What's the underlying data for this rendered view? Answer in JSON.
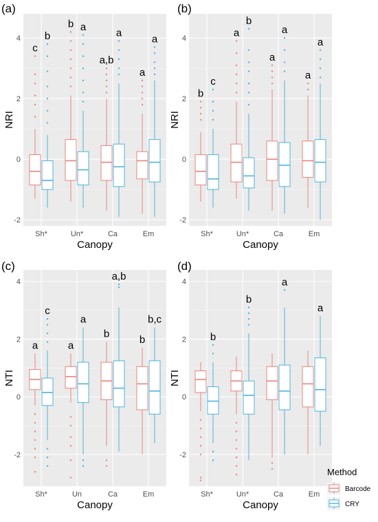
{
  "colors": {
    "panel_bg": "#EBEBEB",
    "grid_major": "#FFFFFF",
    "grid_minor": "#F5F5F5",
    "barcode": "#E8847C",
    "cry": "#4FB3D9",
    "text": "#000000",
    "tick_text": "#4D4D4D"
  },
  "legend": {
    "title": "Method",
    "items": [
      {
        "label": "Barcode",
        "color": "#E8847C"
      },
      {
        "label": "CRY",
        "color": "#4FB3D9"
      }
    ]
  },
  "chart_data": [
    {
      "panel": "(a)",
      "type": "boxplot",
      "xlabel": "Canopy",
      "ylabel": "NRI",
      "ylim": [
        -2.2,
        4.8
      ],
      "yticks": [
        -2,
        0,
        2,
        4
      ],
      "categories": [
        "Sh*",
        "Un*",
        "Ca",
        "Em"
      ],
      "series": [
        {
          "name": "Barcode",
          "boxes": [
            {
              "min": -1.3,
              "q1": -0.85,
              "median": -0.4,
              "q3": 0.15,
              "max": 1.0,
              "outliers": [
                1.4,
                1.8,
                2.1,
                2.5,
                2.8,
                3.4
              ],
              "letter": "c"
            },
            {
              "min": -1.4,
              "q1": -0.7,
              "median": -0.05,
              "q3": 0.65,
              "max": 2.1,
              "outliers": [
                2.4,
                2.7,
                3.0,
                3.3,
                3.6,
                3.9,
                4.2
              ],
              "letter": "b"
            },
            {
              "min": -1.7,
              "q1": -0.7,
              "median": -0.1,
              "q3": 0.45,
              "max": 2.0,
              "outliers": [
                2.2,
                2.4,
                2.6,
                2.8,
                3.0
              ],
              "letter": "a,b"
            },
            {
              "min": -1.8,
              "q1": -0.65,
              "median": -0.05,
              "q3": 0.25,
              "max": 1.5,
              "outliers": [
                1.8,
                2.0,
                2.2,
                2.4,
                2.6
              ],
              "letter": "a"
            }
          ]
        },
        {
          "name": "CRY",
          "boxes": [
            {
              "min": -1.6,
              "q1": -1.0,
              "median": -0.7,
              "q3": -0.05,
              "max": 0.8,
              "outliers": [
                1.2,
                1.6,
                2.0,
                2.4,
                2.9,
                3.4,
                3.8
              ],
              "letter": "b"
            },
            {
              "min": -1.6,
              "q1": -0.85,
              "median": -0.35,
              "q3": 0.25,
              "max": 1.6,
              "outliers": [
                1.9,
                2.2,
                2.6,
                3.0,
                3.4,
                3.8,
                4.1
              ],
              "letter": "a"
            },
            {
              "min": -1.9,
              "q1": -0.9,
              "median": -0.25,
              "q3": 0.5,
              "max": 2.5,
              "outliers": [
                2.8,
                3.0,
                3.3,
                3.6,
                3.9
              ],
              "letter": "a"
            },
            {
              "min": -1.9,
              "q1": -0.75,
              "median": -0.1,
              "q3": 0.65,
              "max": 2.6,
              "outliers": [
                2.8,
                3.0,
                3.2,
                3.5,
                3.7
              ],
              "letter": "a"
            }
          ]
        }
      ]
    },
    {
      "panel": "(b)",
      "type": "boxplot",
      "xlabel": "Canopy",
      "ylabel": "NRI",
      "ylim": [
        -2.2,
        4.8
      ],
      "yticks": [
        -2,
        0,
        2,
        4
      ],
      "categories": [
        "Sh*",
        "Un*",
        "Ca",
        "Em"
      ],
      "series": [
        {
          "name": "Barcode",
          "boxes": [
            {
              "min": -1.4,
              "q1": -0.85,
              "median": -0.4,
              "q3": 0.15,
              "max": 0.9,
              "outliers": [
                1.3,
                1.5,
                1.7,
                1.9
              ],
              "letter": "b"
            },
            {
              "min": -1.3,
              "q1": -0.75,
              "median": -0.1,
              "q3": 0.5,
              "max": 1.9,
              "outliers": [
                2.2,
                2.5,
                2.8,
                3.1,
                3.5,
                3.9
              ],
              "letter": "a"
            },
            {
              "min": -1.7,
              "q1": -0.7,
              "median": 0.0,
              "q3": 0.6,
              "max": 2.3,
              "outliers": [
                2.5,
                2.7,
                2.9,
                3.1
              ],
              "letter": "a"
            },
            {
              "min": -1.6,
              "q1": -0.6,
              "median": -0.05,
              "q3": 0.6,
              "max": 2.1,
              "outliers": [
                2.3,
                2.5
              ],
              "letter": "a"
            }
          ]
        },
        {
          "name": "CRY",
          "boxes": [
            {
              "min": -1.6,
              "q1": -1.0,
              "median": -0.65,
              "q3": 0.15,
              "max": 1.0,
              "outliers": [
                1.3,
                1.6,
                1.9,
                2.3
              ],
              "letter": "c"
            },
            {
              "min": -1.7,
              "q1": -0.95,
              "median": -0.55,
              "q3": 0.05,
              "max": 1.5,
              "outliers": [
                1.8,
                2.2,
                2.5,
                2.9,
                3.2,
                3.6,
                4.3
              ],
              "letter": "b"
            },
            {
              "min": -1.8,
              "q1": -0.9,
              "median": -0.2,
              "q3": 0.55,
              "max": 2.6,
              "outliers": [
                2.9,
                3.2,
                3.6,
                4.0
              ],
              "letter": "a"
            },
            {
              "min": -2.0,
              "q1": -0.75,
              "median": -0.1,
              "q3": 0.65,
              "max": 2.5,
              "outliers": [
                2.7,
                3.0,
                3.3,
                3.6
              ],
              "letter": "a"
            }
          ]
        }
      ]
    },
    {
      "panel": "(c)",
      "type": "boxplot",
      "xlabel": "Canopy",
      "ylabel": "NTI",
      "ylim": [
        -3.1,
        4.4
      ],
      "yticks": [
        -2,
        0,
        2,
        4
      ],
      "categories": [
        "Sh*",
        "Un",
        "Ca",
        "Em"
      ],
      "series": [
        {
          "name": "Barcode",
          "boxes": [
            {
              "min": -0.3,
              "q1": 0.25,
              "median": 0.6,
              "q3": 0.95,
              "max": 1.5,
              "outliers": [
                -0.6,
                -0.9,
                -1.2,
                -1.5,
                -1.8,
                -2.1,
                -2.6
              ],
              "letter": "a"
            },
            {
              "min": -0.2,
              "q1": 0.3,
              "median": 0.7,
              "q3": 1.05,
              "max": 1.5,
              "outliers": [
                -0.7,
                -1.0,
                -1.4,
                -1.7,
                -2.2,
                -2.8
              ],
              "letter": "a"
            },
            {
              "min": -1.7,
              "q1": -0.1,
              "median": 0.55,
              "q3": 1.2,
              "max": 1.9,
              "outliers": [
                -2.2,
                -2.4
              ],
              "letter": "b"
            },
            {
              "min": -2.0,
              "q1": -0.45,
              "median": 0.45,
              "q3": 1.05,
              "max": 1.7,
              "outliers": [],
              "letter": "b"
            }
          ]
        },
        {
          "name": "CRY",
          "boxes": [
            {
              "min": -1.5,
              "q1": -0.3,
              "median": 0.15,
              "q3": 0.65,
              "max": 1.6,
              "outliers": [
                -1.8,
                -2.1,
                -2.4,
                1.9,
                2.2,
                2.5,
                2.7
              ],
              "letter": "c"
            },
            {
              "min": -2.0,
              "q1": -0.2,
              "median": 0.45,
              "q3": 1.2,
              "max": 2.4,
              "outliers": [
                -2.2,
                -2.4
              ],
              "letter": "a"
            },
            {
              "min": -1.9,
              "q1": -0.35,
              "median": 0.3,
              "q3": 1.25,
              "max": 3.1,
              "outliers": [
                3.8,
                3.9
              ],
              "letter": "a,b"
            },
            {
              "min": -1.6,
              "q1": -0.6,
              "median": 0.2,
              "q3": 1.25,
              "max": 2.4,
              "outliers": [],
              "letter": "b,c"
            }
          ]
        }
      ]
    },
    {
      "panel": "(d)",
      "type": "boxplot",
      "xlabel": "Canopy",
      "ylabel": "NTI",
      "ylim": [
        -3.1,
        4.4
      ],
      "yticks": [
        -2,
        0,
        2,
        4
      ],
      "categories": [
        "Sh*",
        "Un*",
        "Ca",
        "Em"
      ],
      "series": [
        {
          "name": "Barcode",
          "boxes": [
            {
              "min": -0.5,
              "q1": 0.15,
              "median": 0.6,
              "q3": 0.9,
              "max": 1.2,
              "outliers": [
                -0.8,
                -1.1,
                -1.4,
                -1.7,
                -2.0,
                -2.8,
                -2.9
              ],
              "letter": ""
            },
            {
              "min": -0.6,
              "q1": 0.2,
              "median": 0.55,
              "q3": 0.9,
              "max": 1.4,
              "outliers": [
                -0.9,
                -1.2,
                -1.5,
                -1.8,
                -2.1,
                -2.4,
                -2.7
              ],
              "letter": ""
            },
            {
              "min": -2.1,
              "q1": -0.1,
              "median": 0.55,
              "q3": 1.05,
              "max": 1.5,
              "outliers": [
                -2.3,
                -2.5
              ],
              "letter": ""
            },
            {
              "min": -2.0,
              "q1": -0.35,
              "median": 0.45,
              "q3": 1.05,
              "max": 1.6,
              "outliers": [],
              "letter": ""
            }
          ]
        },
        {
          "name": "CRY",
          "boxes": [
            {
              "min": -1.6,
              "q1": -0.6,
              "median": -0.15,
              "q3": 0.35,
              "max": 1.2,
              "outliers": [
                -1.9,
                -2.2,
                1.5,
                1.8
              ],
              "letter": "b"
            },
            {
              "min": -2.2,
              "q1": -0.6,
              "median": 0.05,
              "q3": 0.55,
              "max": 2.2,
              "outliers": [
                2.5,
                2.7,
                2.9,
                3.1
              ],
              "letter": "b"
            },
            {
              "min": -2.0,
              "q1": -0.45,
              "median": 0.2,
              "q3": 1.1,
              "max": 3.1,
              "outliers": [
                3.7
              ],
              "letter": "a"
            },
            {
              "min": -1.7,
              "q1": -0.5,
              "median": 0.25,
              "q3": 1.35,
              "max": 2.8,
              "outliers": [],
              "letter": "a"
            }
          ]
        }
      ]
    }
  ]
}
